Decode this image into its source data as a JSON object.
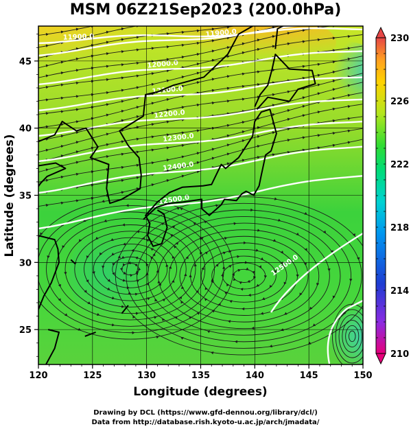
{
  "title": "MSM 06Z21Sep2023 (200.0hPa)",
  "xlabel": "Longitude (degrees)",
  "ylabel": "Latitude  (degrees)",
  "credit_line1": "Drawing by DCL (https://www.gfd-dennou.org/library/dcl/)",
  "credit_line2": "Data from http://database.rish.kyoto-u.ac.jp/arch/jmadata/",
  "map": {
    "lon_range": [
      120,
      150
    ],
    "lat_range": [
      22.4,
      47.6
    ],
    "lon_ticks": [
      "120",
      "125",
      "130",
      "135",
      "140",
      "145",
      "150"
    ],
    "lat_ticks": [
      "25",
      "30",
      "35",
      "40",
      "45"
    ],
    "field_variable": "temperature",
    "vectors": "wind streamlines",
    "contours": "geopotential height",
    "contour_labels": [
      "11900.0",
      "11900.0",
      "12000.0",
      "12100.0",
      "12200.0",
      "12300.0",
      "12400.0",
      "12500.0",
      "12500.0"
    ]
  },
  "colorbar": {
    "range": [
      210,
      230
    ],
    "tick_labels": [
      "230",
      "226",
      "222",
      "218",
      "214",
      "210"
    ],
    "colors": [
      "#e6007a",
      "#8a2be2",
      "#1e3cd2",
      "#0096f0",
      "#00d2d2",
      "#00dc78",
      "#32dc32",
      "#b4e61e",
      "#ffd200",
      "#ffa020",
      "#e64646"
    ]
  },
  "colors": {
    "coastline": "#000000",
    "contour": "#ffffff",
    "streamline": "#1a1a1a",
    "grid": "#000000"
  }
}
